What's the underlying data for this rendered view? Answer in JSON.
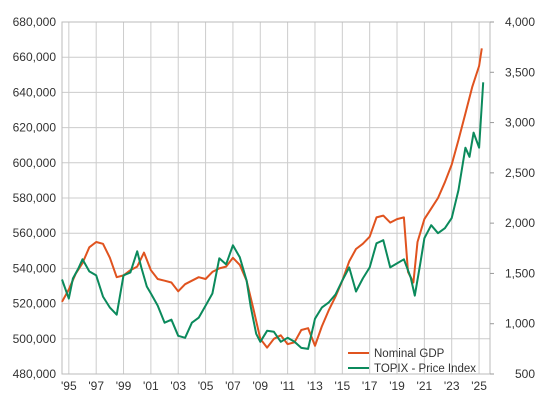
{
  "chart_data": {
    "type": "line",
    "title": "",
    "xlabel": "",
    "ylabel_left": "",
    "ylabel_right": "",
    "x_tick_labels": [
      "'95",
      "'97",
      "'99",
      "'01",
      "'03",
      "'05",
      "'07",
      "'09",
      "'11",
      "'13",
      "'15",
      "'17",
      "'19",
      "'21",
      "'23",
      "'25"
    ],
    "x_tick_years": [
      1995,
      1997,
      1999,
      2001,
      2003,
      2005,
      2007,
      2009,
      2011,
      2013,
      2015,
      2017,
      2019,
      2021,
      2023,
      2025
    ],
    "xlim": [
      1994.5,
      2025.8
    ],
    "y_left": {
      "ylim": [
        480000,
        680000
      ],
      "ticks": [
        480000,
        500000,
        520000,
        540000,
        560000,
        580000,
        600000,
        620000,
        640000,
        660000,
        680000
      ],
      "tick_labels": [
        "480,000",
        "500,000",
        "520,000",
        "540,000",
        "560,000",
        "580,000",
        "600,000",
        "620,000",
        "640,000",
        "660,000",
        "680,000"
      ]
    },
    "y_right": {
      "ylim": [
        500,
        4000
      ],
      "ticks": [
        500,
        1000,
        1500,
        2000,
        2500,
        3000,
        3500,
        4000
      ],
      "tick_labels": [
        "500",
        "1,000",
        "1,500",
        "2,000",
        "2,500",
        "3,000",
        "3,500",
        "4,000"
      ]
    },
    "grid": true,
    "legend_position": "bottom-right",
    "series": [
      {
        "name": "Nominal GDP",
        "axis": "left",
        "color": "#e0531f",
        "x": [
          1994.5,
          1995.0,
          1995.5,
          1996.0,
          1996.5,
          1997.0,
          1997.5,
          1998.0,
          1998.5,
          1999.0,
          1999.5,
          2000.0,
          2000.5,
          2001.0,
          2001.5,
          2002.0,
          2002.5,
          2003.0,
          2003.5,
          2004.0,
          2004.5,
          2005.0,
          2005.5,
          2006.0,
          2006.5,
          2007.0,
          2007.5,
          2008.0,
          2008.5,
          2009.0,
          2009.5,
          2010.0,
          2010.5,
          2011.0,
          2011.5,
          2012.0,
          2012.5,
          2013.0,
          2013.5,
          2014.0,
          2014.5,
          2015.0,
          2015.5,
          2016.0,
          2016.5,
          2017.0,
          2017.5,
          2018.0,
          2018.5,
          2019.0,
          2019.5,
          2019.8,
          2020.2,
          2020.5,
          2021.0,
          2021.5,
          2022.0,
          2022.5,
          2023.0,
          2023.5,
          2024.0,
          2024.5,
          2025.0,
          2025.2
        ],
        "values": [
          521000,
          528000,
          537000,
          543000,
          552000,
          555000,
          554000,
          546000,
          535000,
          536000,
          539000,
          541000,
          549000,
          539000,
          534000,
          533000,
          532000,
          527000,
          531000,
          533000,
          535000,
          534000,
          538000,
          540000,
          541000,
          546000,
          542000,
          533000,
          517000,
          500000,
          495000,
          500000,
          502000,
          497000,
          498000,
          505000,
          506000,
          496000,
          507000,
          516000,
          524000,
          533000,
          544000,
          551000,
          554000,
          558000,
          569000,
          570000,
          566000,
          568000,
          569000,
          538000,
          532000,
          555000,
          568000,
          574000,
          580000,
          589000,
          599000,
          613000,
          628000,
          643000,
          655000,
          665000
        ]
      },
      {
        "name": "TOPIX - Price Index",
        "axis": "right",
        "color": "#0b8a5c",
        "x": [
          1994.5,
          1995.0,
          1995.3,
          1995.7,
          1996.0,
          1996.5,
          1997.0,
          1997.5,
          1998.0,
          1998.5,
          1999.0,
          1999.5,
          2000.0,
          2000.3,
          2000.7,
          2001.0,
          2001.5,
          2002.0,
          2002.5,
          2003.0,
          2003.5,
          2004.0,
          2004.5,
          2005.0,
          2005.5,
          2006.0,
          2006.5,
          2007.0,
          2007.5,
          2008.0,
          2008.3,
          2008.7,
          2009.0,
          2009.5,
          2010.0,
          2010.5,
          2011.0,
          2011.5,
          2012.0,
          2012.5,
          2013.0,
          2013.5,
          2014.0,
          2014.5,
          2015.0,
          2015.5,
          2016.0,
          2016.5,
          2017.0,
          2017.5,
          2018.0,
          2018.5,
          2019.0,
          2019.5,
          2020.0,
          2020.3,
          2020.7,
          2021.0,
          2021.5,
          2022.0,
          2022.5,
          2023.0,
          2023.5,
          2024.0,
          2024.3,
          2024.6,
          2025.0,
          2025.3
        ],
        "values": [
          1440,
          1250,
          1450,
          1550,
          1640,
          1520,
          1480,
          1270,
          1160,
          1090,
          1480,
          1510,
          1720,
          1560,
          1370,
          1300,
          1180,
          1010,
          1040,
          880,
          860,
          1010,
          1060,
          1180,
          1300,
          1650,
          1590,
          1780,
          1660,
          1430,
          1170,
          900,
          820,
          930,
          920,
          820,
          860,
          820,
          760,
          750,
          1050,
          1160,
          1210,
          1290,
          1430,
          1560,
          1320,
          1450,
          1560,
          1800,
          1830,
          1560,
          1600,
          1640,
          1460,
          1280,
          1600,
          1850,
          1980,
          1900,
          1950,
          2050,
          2330,
          2750,
          2660,
          2900,
          2750,
          3400
        ]
      }
    ]
  }
}
